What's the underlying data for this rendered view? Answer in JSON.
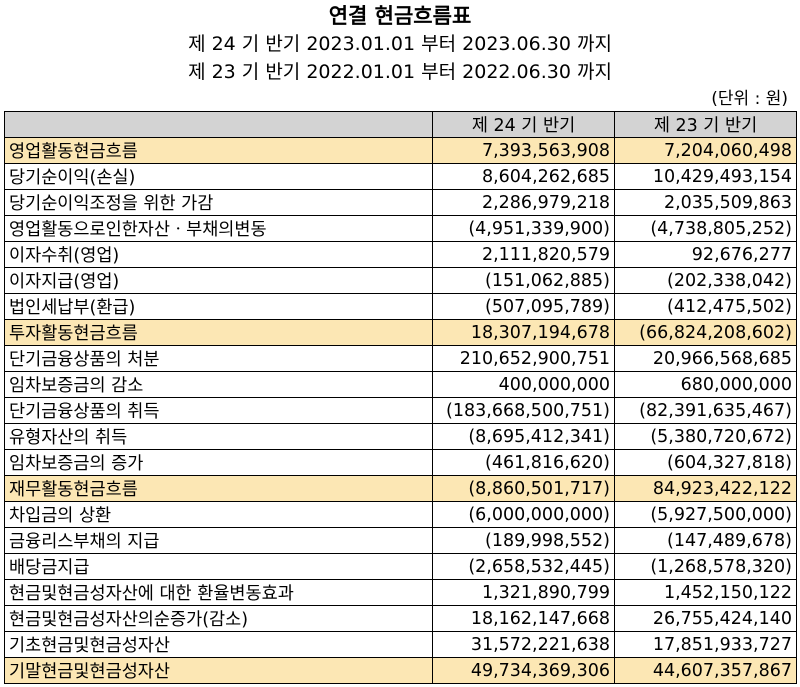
{
  "title": "연결 현금흐름표",
  "period_current": "제 24 기 반기 2023.01.01 부터 2023.06.30 까지",
  "period_prior": "제 23 기 반기 2022.01.01 부터 2022.06.30 까지",
  "unit": "(단위 : 원)",
  "columns": [
    "",
    "제 24 기 반기",
    "제 23 기 반기"
  ],
  "section_color": "#fce7b4",
  "header_color": "#d3d3d3",
  "rows": [
    {
      "label": "영업활동현금흐름",
      "cur": "7,393,563,908",
      "prev": "7,204,060,498"
    },
    {
      "label": "당기순이익(손실)",
      "cur": "8,604,262,685",
      "prev": "10,429,493,154"
    },
    {
      "label": "당기순이익조정을 위한 가감",
      "cur": "2,286,979,218",
      "prev": "2,035,509,863"
    },
    {
      "label": "영업활동으로인한자산ㆍ부채의변동",
      "cur": "(4,951,339,900)",
      "prev": "(4,738,805,252)"
    },
    {
      "label": "이자수취(영업)",
      "cur": "2,111,820,579",
      "prev": "92,676,277"
    },
    {
      "label": "이자지급(영업)",
      "cur": "(151,062,885)",
      "prev": "(202,338,042)"
    },
    {
      "label": "법인세납부(환급)",
      "cur": "(507,095,789)",
      "prev": "(412,475,502)"
    },
    {
      "label": "투자활동현금흐름",
      "cur": "18,307,194,678",
      "prev": "(66,824,208,602)"
    },
    {
      "label": "단기금융상품의 처분",
      "cur": "210,652,900,751",
      "prev": "20,966,568,685"
    },
    {
      "label": "임차보증금의 감소",
      "cur": "400,000,000",
      "prev": "680,000,000"
    },
    {
      "label": "단기금융상품의 취득",
      "cur": "(183,668,500,751)",
      "prev": "(82,391,635,467)"
    },
    {
      "label": "유형자산의 취득",
      "cur": "(8,695,412,341)",
      "prev": "(5,380,720,672)"
    },
    {
      "label": "임차보증금의 증가",
      "cur": "(461,816,620)",
      "prev": "(604,327,818)"
    },
    {
      "label": "재무활동현금흐름",
      "cur": "(8,860,501,717)",
      "prev": "84,923,422,122"
    },
    {
      "label": "차입금의 상환",
      "cur": "(6,000,000,000)",
      "prev": "(5,927,500,000)"
    },
    {
      "label": "금융리스부채의 지급",
      "cur": "(189,998,552)",
      "prev": "(147,489,678)"
    },
    {
      "label": "배당금지급",
      "cur": "(2,658,532,445)",
      "prev": "(1,268,578,320)"
    },
    {
      "label": "현금및현금성자산에 대한 환율변동효과",
      "cur": "1,321,890,799",
      "prev": "1,452,150,122"
    },
    {
      "label": "현금및현금성자산의순증가(감소)",
      "cur": "18,162,147,668",
      "prev": "26,755,424,140"
    },
    {
      "label": "기초현금및현금성자산",
      "cur": "31,572,221,638",
      "prev": "17,851,933,727"
    },
    {
      "label": "기말현금및현금성자산",
      "cur": "49,734,369,306",
      "prev": "44,607,357,867"
    }
  ]
}
